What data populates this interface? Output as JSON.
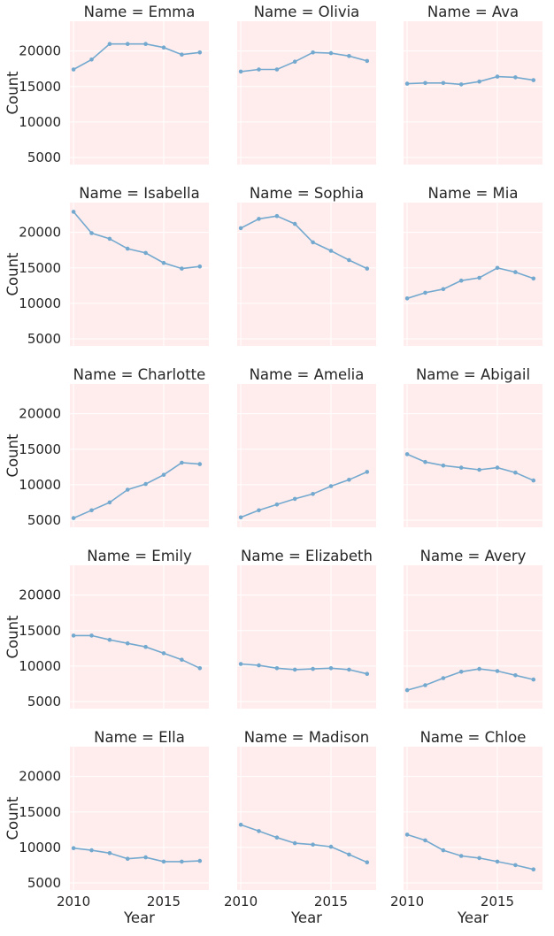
{
  "chart_data": {
    "type": "line",
    "facet_label": "Name",
    "xlabel": "Year",
    "ylabel": "Count",
    "x": [
      2010,
      2011,
      2012,
      2013,
      2014,
      2015,
      2016,
      2017
    ],
    "xlim": [
      2009.8,
      2017.5
    ],
    "ylim": [
      4000,
      24200
    ],
    "yticks": [
      5000,
      10000,
      15000,
      20000
    ],
    "xticks": [
      2010,
      2015
    ],
    "grid": true,
    "color": "#74a9cf",
    "background": "#ffeded",
    "panels": [
      {
        "title": "Name = Emma",
        "values": [
          17400,
          18800,
          21000,
          21000,
          21000,
          20500,
          19500,
          19800
        ]
      },
      {
        "title": "Name = Olivia",
        "values": [
          17100,
          17400,
          17400,
          18500,
          19800,
          19700,
          19300,
          18600
        ]
      },
      {
        "title": "Name = Ava",
        "values": [
          15400,
          15500,
          15500,
          15300,
          15700,
          16400,
          16300,
          15900
        ]
      },
      {
        "title": "Name = Isabella",
        "values": [
          22900,
          19900,
          19100,
          17700,
          17100,
          15700,
          14900,
          15200
        ]
      },
      {
        "title": "Name = Sophia",
        "values": [
          20600,
          21900,
          22300,
          21200,
          18600,
          17400,
          16100,
          14900
        ]
      },
      {
        "title": "Name = Mia",
        "values": [
          10700,
          11500,
          12000,
          13200,
          13600,
          15000,
          14400,
          13500
        ]
      },
      {
        "title": "Name = Charlotte",
        "values": [
          5300,
          6400,
          7500,
          9300,
          10100,
          11400,
          13100,
          12900
        ]
      },
      {
        "title": "Name = Amelia",
        "values": [
          5400,
          6400,
          7200,
          8000,
          8700,
          9800,
          10700,
          11800
        ]
      },
      {
        "title": "Name = Abigail",
        "values": [
          14300,
          13200,
          12700,
          12400,
          12100,
          12400,
          11700,
          10600
        ]
      },
      {
        "title": "Name = Emily",
        "values": [
          14300,
          14300,
          13700,
          13200,
          12700,
          11800,
          10900,
          9700
        ]
      },
      {
        "title": "Name = Elizabeth",
        "values": [
          10300,
          10100,
          9700,
          9500,
          9600,
          9700,
          9500,
          8900
        ]
      },
      {
        "title": "Name = Avery",
        "values": [
          6600,
          7300,
          8300,
          9200,
          9600,
          9300,
          8700,
          8100
        ]
      },
      {
        "title": "Name = Ella",
        "values": [
          9900,
          9600,
          9200,
          8400,
          8600,
          8000,
          8000,
          8100
        ]
      },
      {
        "title": "Name = Madison",
        "values": [
          13200,
          12300,
          11400,
          10600,
          10400,
          10100,
          9000,
          7900
        ]
      },
      {
        "title": "Name = Chloe",
        "values": [
          11800,
          11000,
          9600,
          8800,
          8500,
          8000,
          7500,
          6900
        ]
      }
    ]
  }
}
